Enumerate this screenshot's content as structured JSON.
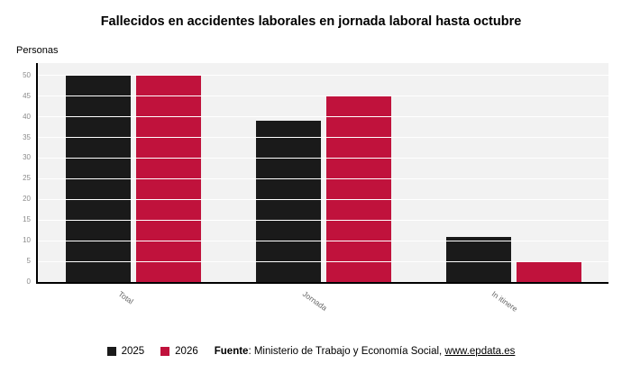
{
  "title": "Fallecidos en accidentes laborales en jornada laboral hasta octubre",
  "y_axis_title": "Personas",
  "chart_data": {
    "type": "bar",
    "categories": [
      "Total",
      "Jornada",
      "In itinere"
    ],
    "series": [
      {
        "name": "2025",
        "color": "#1a1a1a",
        "values": [
          50,
          39,
          11
        ]
      },
      {
        "name": "2026",
        "color": "#c0123c",
        "values": [
          50,
          45,
          5
        ]
      }
    ],
    "title": "Fallecidos en accidentes laborales en jornada laboral hasta octubre",
    "xlabel": "",
    "ylabel": "Personas",
    "ylim": [
      0,
      53
    ],
    "yticks": [
      0,
      5,
      10,
      15,
      20,
      25,
      30,
      35,
      40,
      45,
      50
    ],
    "grid": true,
    "plot_background": "#f2f2f2",
    "legend_position": "bottom"
  },
  "legend": {
    "items": [
      {
        "label": "2025",
        "color": "#1a1a1a"
      },
      {
        "label": "2026",
        "color": "#c0123c"
      }
    ]
  },
  "footer": {
    "source_label": "Fuente",
    "source_separator": ": ",
    "source_text": "Ministerio de Trabajo y Economía Social, ",
    "source_link": "www.epdata.es"
  }
}
